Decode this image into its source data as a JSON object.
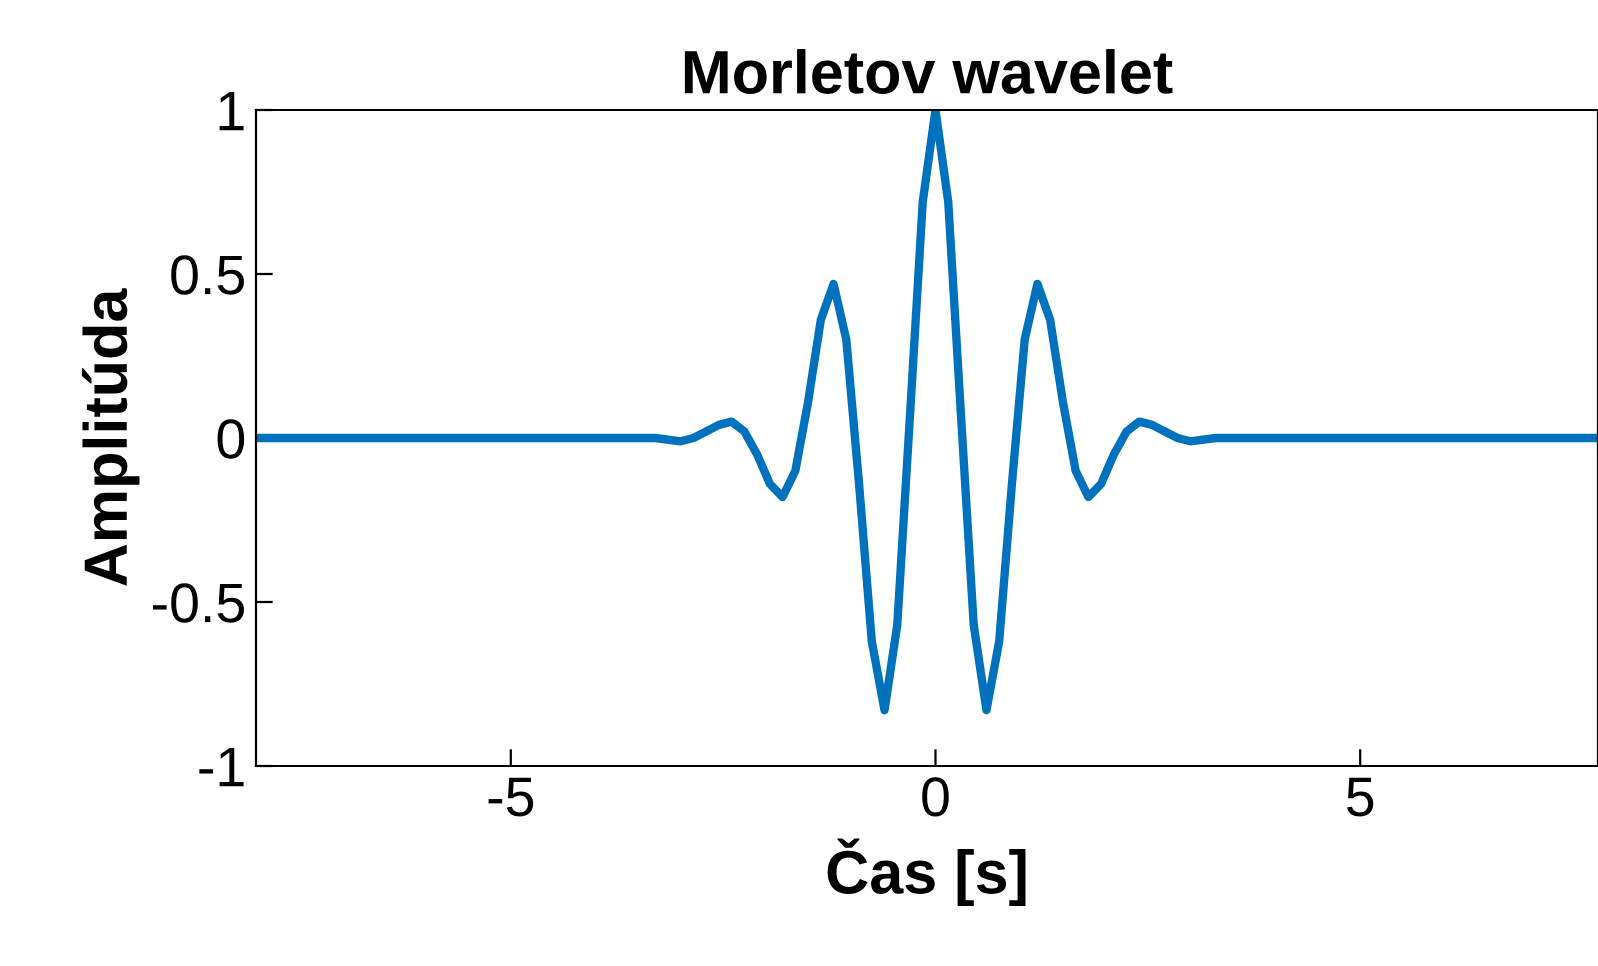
{
  "chart_data": {
    "type": "line",
    "title": "Morletov wavelet",
    "xlabel": "Čas [s]",
    "ylabel": "Amplitúda",
    "x": [
      -8,
      -6,
      -4,
      -3.3,
      -3.0,
      -2.85,
      -2.7,
      -2.55,
      -2.4,
      -2.25,
      -2.1,
      -1.95,
      -1.8,
      -1.65,
      -1.5,
      -1.35,
      -1.2,
      -1.05,
      -0.9,
      -0.75,
      -0.6,
      -0.45,
      -0.3,
      -0.15,
      0,
      0.15,
      0.3,
      0.45,
      0.6,
      0.75,
      0.9,
      1.05,
      1.2,
      1.35,
      1.5,
      1.65,
      1.8,
      1.95,
      2.1,
      2.25,
      2.4,
      2.55,
      2.7,
      2.85,
      3.0,
      3.3,
      4,
      6,
      7.8
    ],
    "series": [
      {
        "color": "#0072bd",
        "values": [
          0,
          0,
          0,
          0,
          -0.01,
          0.0,
          0.02,
          0.04,
          0.05,
          0.02,
          -0.05,
          -0.14,
          -0.18,
          -0.1,
          0.11,
          0.36,
          0.47,
          0.3,
          -0.14,
          -0.62,
          -0.83,
          -0.57,
          0.07,
          0.72,
          1,
          0.72,
          0.07,
          -0.57,
          -0.83,
          -0.62,
          -0.14,
          0.3,
          0.47,
          0.36,
          0.11,
          -0.1,
          -0.18,
          -0.14,
          -0.05,
          0.02,
          0.05,
          0.04,
          0.02,
          0.0,
          -0.01,
          0,
          0,
          0,
          0
        ]
      }
    ],
    "xlim": [
      -8,
      7.8
    ],
    "xticks": [
      -5,
      0,
      5
    ],
    "ylim": [
      -1,
      1
    ],
    "yticks": [
      -1,
      -0.5,
      0,
      0.5,
      1
    ],
    "grid": false,
    "legend": false,
    "marker": "none",
    "line_style": "solid"
  }
}
